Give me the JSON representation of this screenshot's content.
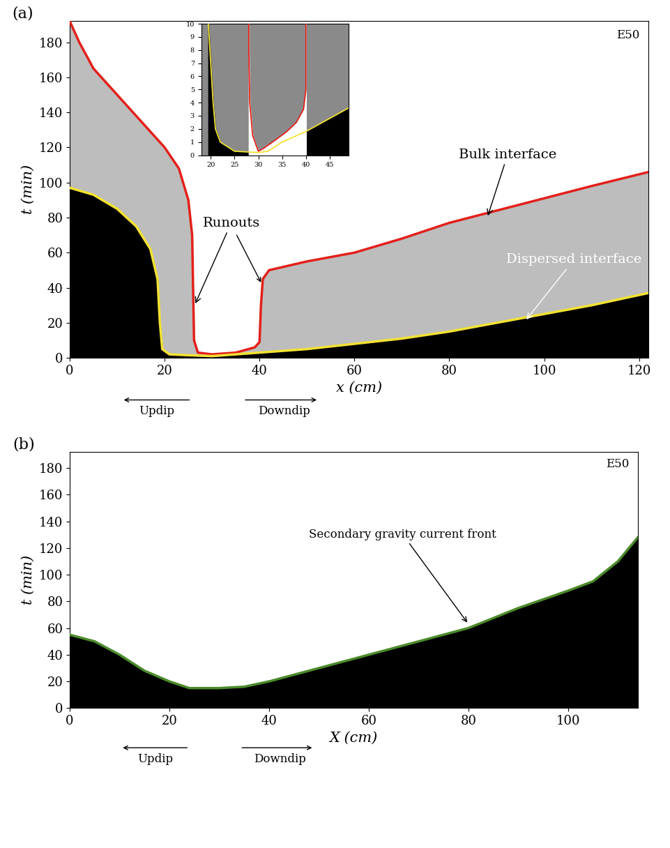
{
  "chart_data": [
    {
      "type": "line",
      "title": "(a)",
      "xlabel": "x (cm)",
      "ylabel": "t (min)",
      "xlim": [
        0,
        122
      ],
      "ylim": [
        0,
        192
      ],
      "xticks": [
        0,
        20,
        40,
        60,
        80,
        100,
        120
      ],
      "yticks": [
        0,
        20,
        40,
        60,
        80,
        100,
        120,
        140,
        160,
        180
      ],
      "annotations": [
        "E50",
        "Bulk interface",
        "Runouts",
        "Dispersed interface",
        "Updip",
        "Downdip"
      ],
      "series": [
        {
          "color": "#e3201b",
          "x": [
            0,
            2,
            5,
            10,
            15,
            20,
            23,
            25,
            25.8,
            26,
            26.2,
            27,
            30,
            35,
            39,
            40,
            40.3,
            40.7,
            42,
            50,
            60,
            70,
            80,
            90,
            100,
            110,
            122
          ],
          "values": [
            192,
            180,
            165,
            150,
            135,
            120,
            108,
            90,
            70,
            40,
            10,
            3,
            2,
            3,
            6,
            9,
            30,
            45,
            50,
            55,
            60,
            68,
            77,
            84,
            91,
            98,
            106
          ]
        },
        {
          "color": "#f2e232",
          "x": [
            0,
            5,
            10,
            14,
            17,
            18.5,
            19,
            19.5,
            21,
            25,
            30,
            35,
            40,
            50,
            60,
            70,
            80,
            90,
            100,
            110,
            122
          ],
          "values": [
            97,
            93,
            85,
            75,
            62,
            45,
            20,
            5,
            2,
            1.5,
            1,
            2,
            3,
            5,
            8,
            11,
            15,
            20,
            25,
            30,
            37
          ]
        }
      ]
    },
    {
      "type": "line",
      "xlim": [
        18,
        49
      ],
      "ylim": [
        0,
        10
      ],
      "xticks": [
        20,
        25,
        30,
        35,
        40,
        45
      ],
      "yticks": [
        0,
        1,
        2,
        3,
        4,
        5,
        6,
        7,
        8,
        9,
        10
      ],
      "series": [
        {
          "color": "#e3201b",
          "x": [
            28,
            28,
            28.2,
            28.8,
            30,
            31,
            33,
            36,
            38,
            39.5,
            40,
            40
          ],
          "values": [
            10,
            8,
            4,
            1.5,
            0.3,
            0.5,
            1,
            1.8,
            2.5,
            3.5,
            5,
            10
          ]
        },
        {
          "color": "#f2e232",
          "x": [
            19.5,
            20,
            20.5,
            21,
            22,
            25,
            30,
            32,
            35,
            40,
            45,
            49
          ],
          "values": [
            10,
            7,
            4,
            2,
            1,
            0.3,
            0.2,
            0.3,
            1,
            1.8,
            2.8,
            3.6
          ]
        }
      ]
    },
    {
      "type": "line",
      "title": "(b)",
      "xlabel": "X (cm)",
      "ylabel": "t (min)",
      "xlim": [
        0,
        114
      ],
      "ylim": [
        0,
        192
      ],
      "xticks": [
        0,
        20,
        40,
        60,
        80,
        100
      ],
      "yticks": [
        0,
        20,
        40,
        60,
        80,
        100,
        120,
        140,
        160,
        180
      ],
      "annotations": [
        "E50",
        "Secondary gravity current front",
        "Updip",
        "Downdip"
      ],
      "series": [
        {
          "color": "#4b8b2b",
          "x": [
            0,
            5,
            10,
            15,
            20,
            24,
            30,
            35,
            40,
            50,
            60,
            70,
            80,
            90,
            100,
            105,
            110,
            114
          ],
          "values": [
            55,
            50,
            40,
            28,
            20,
            15,
            15,
            16,
            20,
            30,
            40,
            50,
            60,
            75,
            88,
            95,
            110,
            128
          ]
        }
      ]
    }
  ]
}
